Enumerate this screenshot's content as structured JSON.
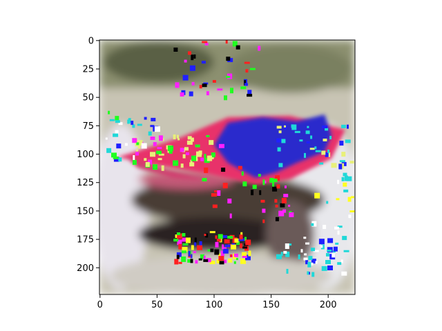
{
  "chart_data": {
    "type": "heatmap",
    "title": "",
    "xlabel": "",
    "ylabel": "",
    "xlim": [
      0,
      224
    ],
    "ylim": [
      224,
      0
    ],
    "x_ticks": [
      0,
      50,
      100,
      150,
      200
    ],
    "y_ticks": [
      0,
      25,
      50,
      75,
      100,
      125,
      150,
      175,
      200
    ],
    "x_tick_labels": [
      "0",
      "50",
      "100",
      "150",
      "200"
    ],
    "y_tick_labels": [
      "0",
      "25",
      "50",
      "75",
      "100",
      "125",
      "150",
      "175",
      "200"
    ],
    "grid": false,
    "image_content": "noisy RGB image of a red/pink roofed structure with scattered saturated colour speckles",
    "colors": {
      "roof": "#e8306a",
      "blue_patch": "#2a2acc",
      "cyan": "#20d8d8",
      "yellow": "#e8f07a",
      "green": "#20ff20",
      "background": "#c8c0b0"
    }
  }
}
